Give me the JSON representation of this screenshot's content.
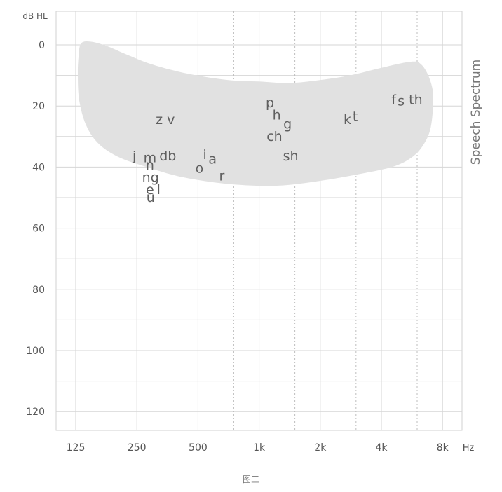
{
  "chart_data": {
    "type": "scatter",
    "title": "",
    "ylabel": "dB HL",
    "xlabel": "Hz",
    "x_scale": "log2",
    "y_inverted": true,
    "xlim": [
      125,
      8000
    ],
    "ylim": [
      -10,
      125
    ],
    "grid": true,
    "x_ticks": [
      {
        "value": 125,
        "label": "125"
      },
      {
        "value": 250,
        "label": "250"
      },
      {
        "value": 500,
        "label": "500"
      },
      {
        "value": 1000,
        "label": "1k"
      },
      {
        "value": 2000,
        "label": "2k"
      },
      {
        "value": 4000,
        "label": "4k"
      },
      {
        "value": 8000,
        "label": "8k"
      }
    ],
    "x_mid_ticks": [
      750,
      1500,
      3000,
      6000
    ],
    "y_ticks": [
      {
        "value": 0,
        "label": "0"
      },
      {
        "value": 20,
        "label": "20"
      },
      {
        "value": 40,
        "label": "40"
      },
      {
        "value": 60,
        "label": "60"
      },
      {
        "value": 80,
        "label": "80"
      },
      {
        "value": 100,
        "label": "100"
      },
      {
        "value": 120,
        "label": "120"
      }
    ],
    "y_minor": [
      10,
      30,
      50,
      70,
      90,
      110
    ],
    "region": {
      "name": "Speech Spectrum",
      "color": "#e1e1e1",
      "outline": [
        [
          133,
          -0.5
        ],
        [
          150,
          -1
        ],
        [
          180,
          0.5
        ],
        [
          220,
          3
        ],
        [
          300,
          6.5
        ],
        [
          450,
          9.5
        ],
        [
          700,
          11.5
        ],
        [
          1000,
          12
        ],
        [
          1400,
          12.5
        ],
        [
          2000,
          11.5
        ],
        [
          2800,
          10
        ],
        [
          4000,
          7.5
        ],
        [
          5600,
          5.5
        ],
        [
          6300,
          6.5
        ],
        [
          6900,
          11
        ],
        [
          7200,
          17
        ],
        [
          7000,
          27
        ],
        [
          6400,
          33
        ],
        [
          5600,
          37
        ],
        [
          4500,
          40
        ],
        [
          3000,
          42.5
        ],
        [
          2000,
          44.5
        ],
        [
          1300,
          46
        ],
        [
          900,
          46
        ],
        [
          600,
          45
        ],
        [
          400,
          43
        ],
        [
          280,
          40
        ],
        [
          200,
          36.5
        ],
        [
          160,
          32
        ],
        [
          140,
          26
        ],
        [
          130,
          18
        ],
        [
          128,
          10
        ],
        [
          129,
          4
        ]
      ]
    },
    "annotations": [
      {
        "text": "z v",
        "x": 345,
        "y": 24.5
      },
      {
        "text": "j",
        "x": 243,
        "y": 36.5
      },
      {
        "text": "m",
        "x": 290,
        "y": 37
      },
      {
        "text": "db",
        "x": 355,
        "y": 36.5
      },
      {
        "text": "n",
        "x": 290,
        "y": 39.5
      },
      {
        "text": "ng",
        "x": 292,
        "y": 43.5
      },
      {
        "text": "e",
        "x": 290,
        "y": 47.5
      },
      {
        "text": "l",
        "x": 320,
        "y": 47.5
      },
      {
        "text": "u",
        "x": 292,
        "y": 50
      },
      {
        "text": "i",
        "x": 540,
        "y": 36
      },
      {
        "text": "a",
        "x": 590,
        "y": 37.5
      },
      {
        "text": "o",
        "x": 508,
        "y": 40.5
      },
      {
        "text": "r",
        "x": 655,
        "y": 43
      },
      {
        "text": "p",
        "x": 1130,
        "y": 19
      },
      {
        "text": "h",
        "x": 1220,
        "y": 23
      },
      {
        "text": "g",
        "x": 1380,
        "y": 26
      },
      {
        "text": "ch",
        "x": 1190,
        "y": 30
      },
      {
        "text": "sh",
        "x": 1430,
        "y": 36.5
      },
      {
        "text": "k",
        "x": 2720,
        "y": 24.5
      },
      {
        "text": "t",
        "x": 2970,
        "y": 23.5
      },
      {
        "text": "f",
        "x": 4600,
        "y": 18
      },
      {
        "text": "s",
        "x": 5000,
        "y": 18.5
      },
      {
        "text": "th",
        "x": 5900,
        "y": 18
      }
    ]
  },
  "caption": "图三"
}
